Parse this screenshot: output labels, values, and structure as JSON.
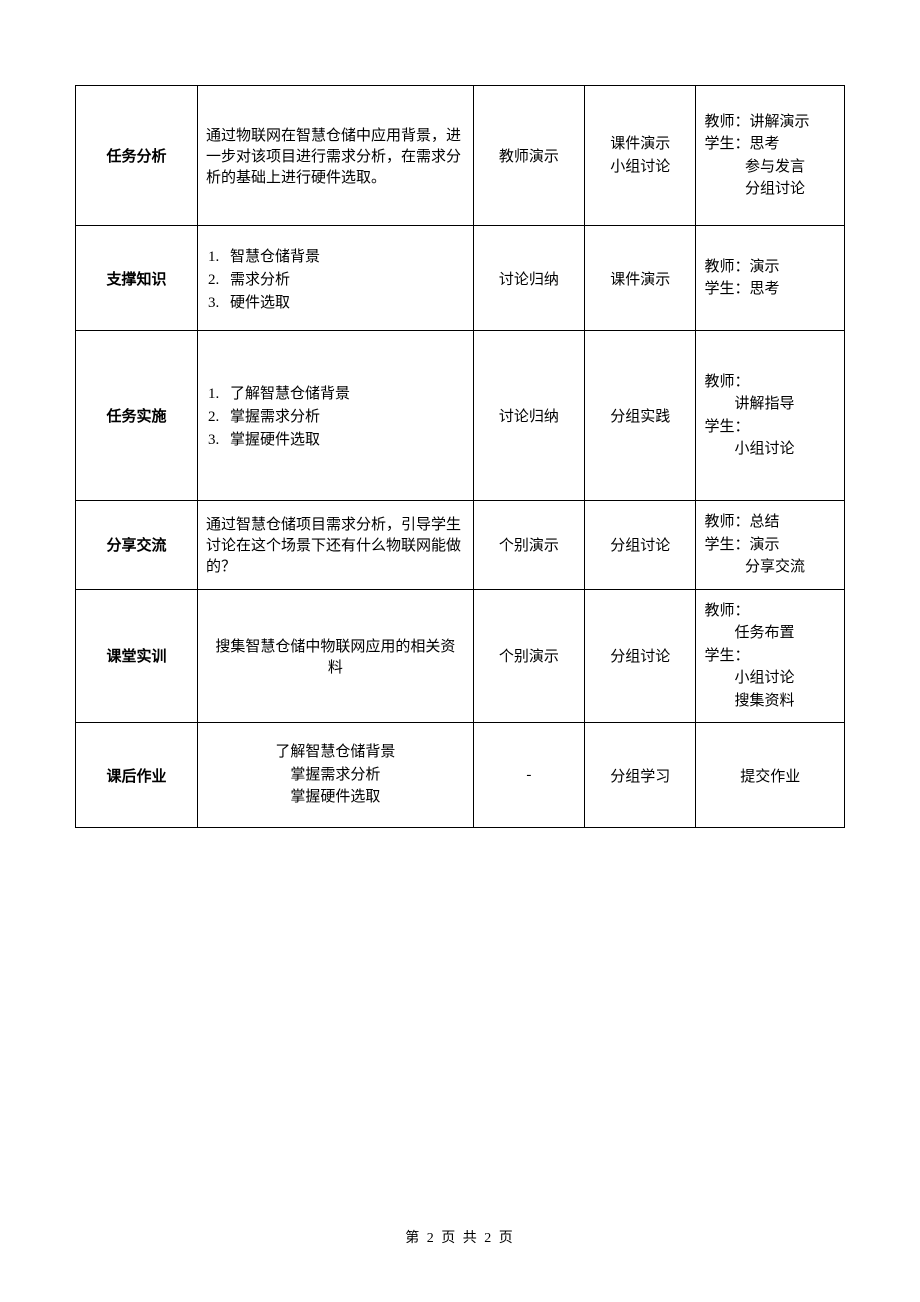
{
  "border_color": "#000000",
  "text_color": "#000000",
  "background_color": "#ffffff",
  "body_fontsize": 15,
  "footer_fontsize": 14,
  "columns": {
    "widths": [
      115,
      260,
      105,
      105,
      140
    ]
  },
  "rows": [
    {
      "label": "任务分析",
      "content_text": "通过物联网在智慧仓储中应用背景，进一步对该项目进行需求分析，在需求分析的基础上进行硬件选取。",
      "col3": "教师演示",
      "col4_lines": [
        "课件演示",
        "小组讨论"
      ],
      "col5_lines_plain": [
        "教师：讲解演示",
        "学生：思考"
      ],
      "col5_lines_indent": [
        "参与发言",
        "分组讨论"
      ]
    },
    {
      "label": "支撑知识",
      "content_list": [
        "智慧仓储背景",
        "需求分析",
        "硬件选取"
      ],
      "col3": "讨论归纳",
      "col4_lines": [
        "课件演示"
      ],
      "col5_lines_plain": [
        "教师：演示",
        "学生：思考"
      ],
      "col5_lines_indent": []
    },
    {
      "label": "任务实施",
      "content_list": [
        "了解智慧仓储背景",
        "掌握需求分析",
        "掌握硬件选取"
      ],
      "col3": "讨论归纳",
      "col4_lines": [
        "分组实践"
      ],
      "col5_block": [
        "教师：",
        "讲解指导",
        "学生：",
        "小组讨论"
      ]
    },
    {
      "label": "分享交流",
      "content_text": "通过智慧仓储项目需求分析，引导学生讨论在这个场景下还有什么物联网能做的？",
      "col3": "个别演示",
      "col4_lines": [
        "分组讨论"
      ],
      "col5_lines_plain": [
        "教师：总结",
        "学生：演示"
      ],
      "col5_lines_indent": [
        "分享交流"
      ]
    },
    {
      "label": "课堂实训",
      "content_center_lines": [
        "搜集智慧仓储中物联网应用的相关资",
        "料"
      ],
      "col3": "个别演示",
      "col4_lines": [
        "分组讨论"
      ],
      "col5_block": [
        "教师：",
        "任务布置",
        "学生：",
        "小组讨论",
        "搜集资料"
      ]
    },
    {
      "label": "课后作业",
      "content_center_lines": [
        "了解智慧仓储背景",
        "掌握需求分析",
        "掌握硬件选取"
      ],
      "col3": "-",
      "col4_lines": [
        "分组学习"
      ],
      "col5_center": "提交作业"
    }
  ],
  "footer": "第 2 页 共 2 页"
}
